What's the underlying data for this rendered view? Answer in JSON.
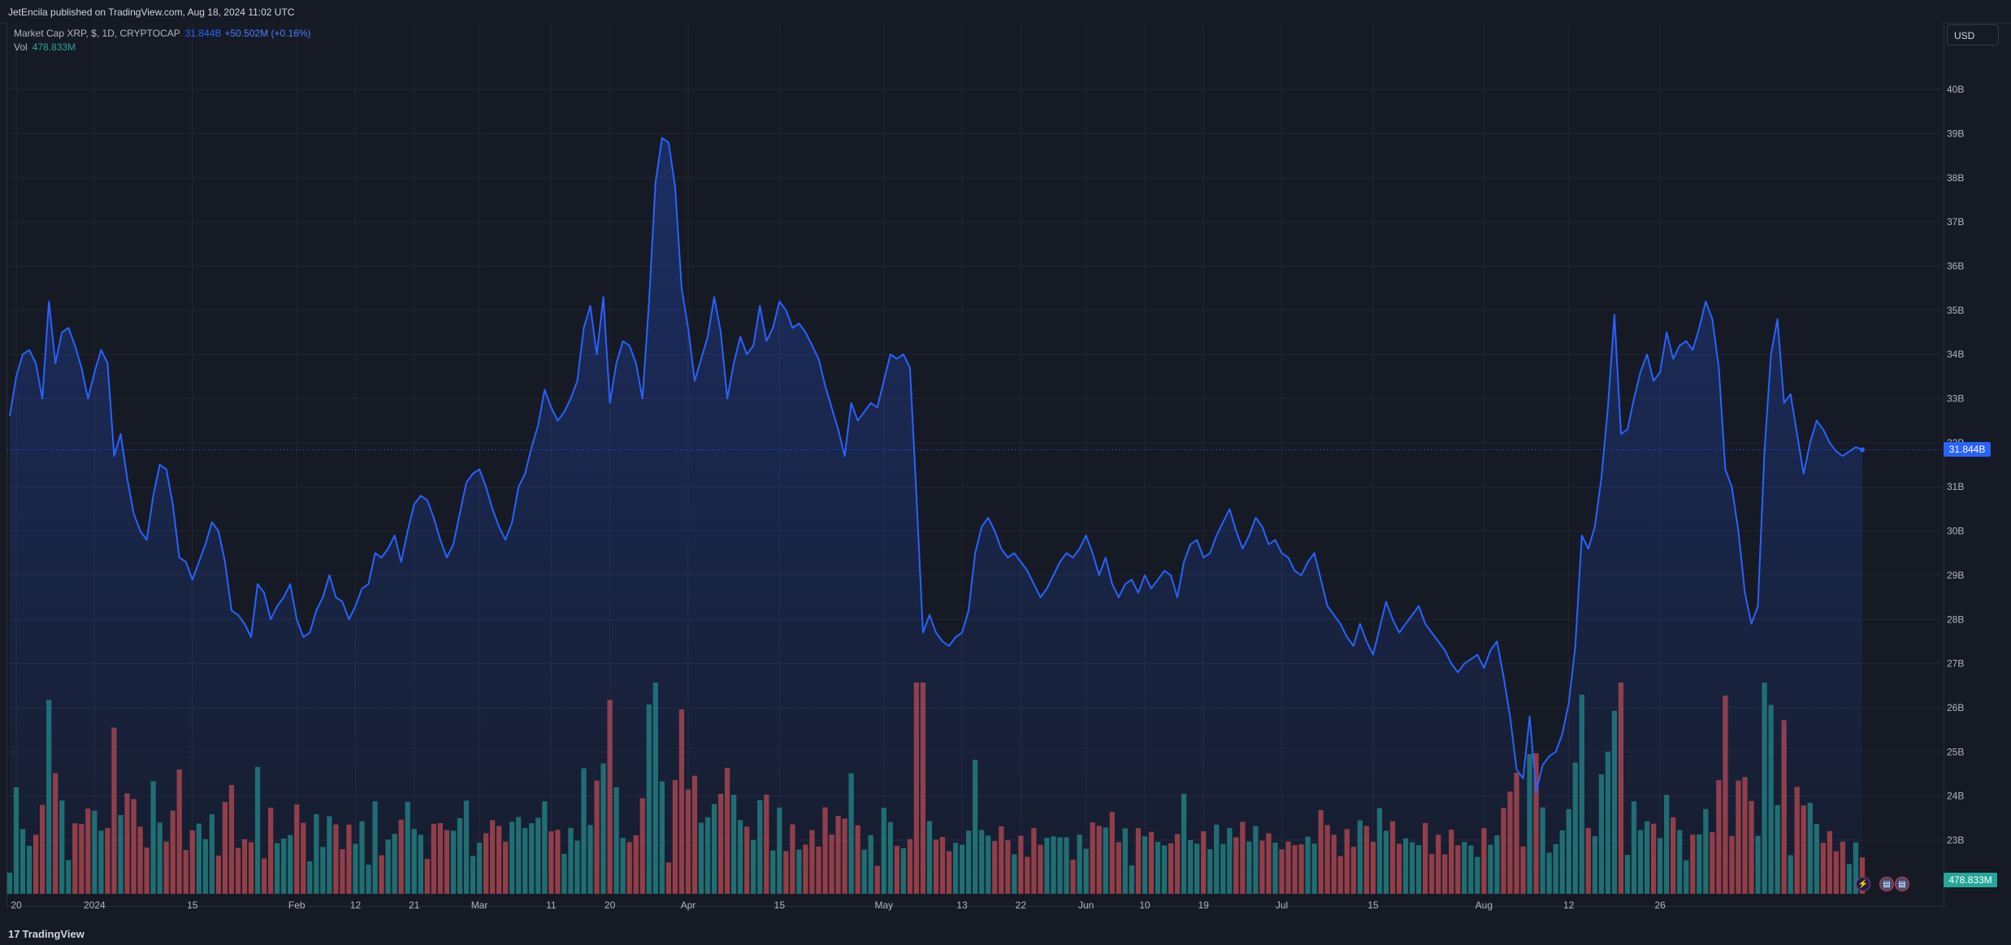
{
  "header": {
    "published": "JetEncila published on TradingView.com, Aug 18, 2024 11:02 UTC"
  },
  "legend": {
    "symbol": "Market Cap XRP, $, 1D, CRYPTOCAP",
    "last": "31.844B",
    "change": "+50.502M (+0.16%)",
    "vol_label": "Vol",
    "vol_value": "478.833M"
  },
  "currency_button": "USD",
  "price_tag": "31.844B",
  "volume_tag": "478.833M",
  "footer_brand": "TradingView",
  "footer_mark": "17",
  "colors": {
    "line": "#2962ff",
    "up": "#26a69a",
    "down": "#ef5350",
    "bg": "#161a25",
    "grid": "#232632"
  },
  "y_axis_ticks": [
    "23B",
    "24B",
    "25B",
    "26B",
    "27B",
    "28B",
    "29B",
    "30B",
    "31B",
    "32B",
    "33B",
    "34B",
    "35B",
    "36B",
    "37B",
    "38B",
    "39B",
    "40B"
  ],
  "x_axis_ticks": [
    "20",
    "2024",
    "15",
    "Feb",
    "12",
    "21",
    "Mar",
    "11",
    "20",
    "Apr",
    "15",
    "May",
    "13",
    "22",
    "Jun",
    "10",
    "19",
    "Jul",
    "15",
    "Aug",
    "12",
    "26"
  ],
  "chart_data": {
    "type": "area",
    "title": "Market Cap XRP, $, 1D, CRYPTOCAP",
    "xlabel": "",
    "ylabel": "",
    "ylim": [
      22.6,
      40.8
    ],
    "grid": true,
    "start_date": "2023-12-19",
    "dates_note": "daily bars from 2023-12-19 to 2024-08-18",
    "series": [
      {
        "name": "Market Cap XRP",
        "unit": "B USD",
        "values": [
          32.6,
          33.5,
          34.0,
          34.1,
          33.8,
          33.0,
          35.2,
          33.8,
          34.5,
          34.6,
          34.2,
          33.7,
          33.0,
          33.6,
          34.1,
          33.8,
          31.7,
          32.2,
          31.2,
          30.4,
          30.0,
          29.8,
          30.8,
          31.5,
          31.4,
          30.6,
          29.4,
          29.3,
          28.9,
          29.3,
          29.7,
          30.2,
          30.0,
          29.3,
          28.2,
          28.1,
          27.9,
          27.6,
          28.8,
          28.6,
          28.0,
          28.3,
          28.5,
          28.8,
          28.0,
          27.6,
          27.7,
          28.2,
          28.5,
          29.0,
          28.5,
          28.4,
          28.0,
          28.3,
          28.7,
          28.8,
          29.5,
          29.4,
          29.6,
          29.9,
          29.3,
          30.0,
          30.6,
          30.8,
          30.7,
          30.3,
          29.8,
          29.4,
          29.7,
          30.4,
          31.1,
          31.3,
          31.4,
          31.0,
          30.5,
          30.1,
          29.8,
          30.2,
          31.0,
          31.3,
          31.9,
          32.4,
          33.2,
          32.8,
          32.5,
          32.7,
          33.0,
          33.4,
          34.6,
          35.1,
          34.0,
          35.3,
          32.9,
          33.8,
          34.3,
          34.2,
          33.8,
          33.0,
          35.2,
          37.9,
          38.9,
          38.8,
          37.8,
          35.5,
          34.6,
          33.4,
          33.9,
          34.4,
          35.3,
          34.5,
          33.0,
          33.8,
          34.4,
          34.0,
          34.2,
          35.1,
          34.3,
          34.6,
          35.2,
          35.0,
          34.6,
          34.7,
          34.5,
          34.2,
          33.9,
          33.3,
          32.8,
          32.3,
          31.7,
          32.9,
          32.5,
          32.7,
          32.9,
          32.8,
          33.4,
          34.0,
          33.9,
          34.0,
          33.7,
          30.8,
          27.7,
          28.1,
          27.7,
          27.5,
          27.4,
          27.6,
          27.7,
          28.2,
          29.5,
          30.1,
          30.3,
          30.0,
          29.6,
          29.4,
          29.5,
          29.3,
          29.1,
          28.8,
          28.5,
          28.7,
          29.0,
          29.3,
          29.5,
          29.4,
          29.6,
          29.9,
          29.5,
          29.0,
          29.4,
          28.8,
          28.5,
          28.8,
          28.9,
          28.6,
          29.0,
          28.7,
          28.9,
          29.1,
          29.0,
          28.5,
          29.3,
          29.7,
          29.8,
          29.4,
          29.5,
          29.9,
          30.2,
          30.5,
          30.0,
          29.6,
          29.9,
          30.3,
          30.1,
          29.7,
          29.8,
          29.5,
          29.4,
          29.1,
          29.0,
          29.3,
          29.5,
          28.9,
          28.3,
          28.1,
          27.9,
          27.6,
          27.4,
          27.9,
          27.5,
          27.2,
          27.8,
          28.4,
          28.0,
          27.7,
          27.9,
          28.1,
          28.3,
          27.9,
          27.7,
          27.5,
          27.3,
          27.0,
          26.8,
          27.0,
          27.1,
          27.2,
          26.9,
          27.3,
          27.5,
          26.7,
          25.8,
          24.6,
          24.4,
          25.8,
          24.1,
          24.7,
          24.9,
          25.0,
          25.4,
          26.1,
          27.4,
          29.9,
          29.6,
          30.1,
          31.2,
          32.8,
          34.9,
          32.2,
          32.3,
          33.0,
          33.6,
          34.0,
          33.4,
          33.6,
          34.5,
          33.9,
          34.2,
          34.3,
          34.1,
          34.6,
          35.2,
          34.8,
          33.7,
          31.4,
          31.0,
          30.0,
          28.6,
          27.9,
          28.3,
          31.8,
          34.0,
          34.8,
          32.9,
          33.1,
          32.2,
          31.3,
          32.0,
          32.5,
          32.3,
          32.0,
          31.8,
          31.7,
          31.8,
          31.9,
          31.84
        ]
      },
      {
        "name": "Vol",
        "unit": "relative",
        "last": "478.833M"
      }
    ]
  }
}
